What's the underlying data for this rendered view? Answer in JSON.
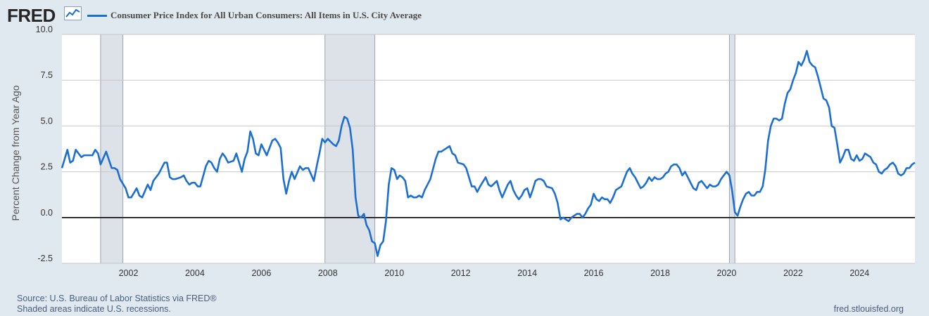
{
  "header": {
    "logo_text": "FRED",
    "logo_icon": "line-chart-icon",
    "series_title": "Consumer Price Index for All Urban Consumers: All Items in U.S. City Average"
  },
  "footer": {
    "source": "Source: U.S. Bureau of Labor Statistics via FRED®",
    "recessions_note": "Shaded areas indicate U.S. recessions.",
    "site": "fred.stlouisfed.org"
  },
  "colors": {
    "series": "#1c6fd1",
    "background": "#e1e9f0",
    "plot_bg": "#ffffff",
    "recession": "#dde1e8",
    "zero_line": "#000000"
  },
  "chart_data": {
    "type": "line",
    "title": "Consumer Price Index for All Urban Consumers: All Items in U.S. City Average",
    "xlabel": "",
    "ylabel": "Percent Change from Year Ago",
    "xlim": [
      "2000-01-01",
      "2025-09-01"
    ],
    "ylim": [
      -2.5,
      10.0
    ],
    "yticks": [
      -2.5,
      0.0,
      2.5,
      5.0,
      7.5,
      10.0
    ],
    "ytick_labels": [
      "-2.5",
      "0.0",
      "2.5",
      "5.0",
      "7.5",
      "10.0"
    ],
    "xticks": [
      "2002",
      "2004",
      "2006",
      "2008",
      "2010",
      "2012",
      "2014",
      "2016",
      "2018",
      "2020",
      "2022",
      "2024"
    ],
    "grid": true,
    "recessions": [
      {
        "start": "2001-03-01",
        "end": "2001-11-01"
      },
      {
        "start": "2007-12-01",
        "end": "2009-06-01"
      },
      {
        "start": "2020-02-01",
        "end": "2020-04-01"
      }
    ],
    "series": [
      {
        "name": "Consumer Price Index for All Urban Consumers: All Items in U.S. City Average",
        "points": [
          [
            "2000-01",
            2.7
          ],
          [
            "2000-03",
            3.7
          ],
          [
            "2000-04",
            3.0
          ],
          [
            "2000-05",
            3.1
          ],
          [
            "2000-06",
            3.7
          ],
          [
            "2000-08",
            3.3
          ],
          [
            "2000-09",
            3.4
          ],
          [
            "2000-12",
            3.4
          ],
          [
            "2001-01",
            3.7
          ],
          [
            "2001-02",
            3.5
          ],
          [
            "2001-03",
            2.9
          ],
          [
            "2001-05",
            3.6
          ],
          [
            "2001-07",
            2.7
          ],
          [
            "2001-08",
            2.7
          ],
          [
            "2001-09",
            2.6
          ],
          [
            "2001-10",
            2.1
          ],
          [
            "2001-12",
            1.6
          ],
          [
            "2002-01",
            1.1
          ],
          [
            "2002-02",
            1.1
          ],
          [
            "2002-04",
            1.6
          ],
          [
            "2002-05",
            1.2
          ],
          [
            "2002-06",
            1.1
          ],
          [
            "2002-08",
            1.8
          ],
          [
            "2002-09",
            1.5
          ],
          [
            "2002-10",
            2.0
          ],
          [
            "2002-12",
            2.4
          ],
          [
            "2003-02",
            3.0
          ],
          [
            "2003-03",
            3.0
          ],
          [
            "2003-04",
            2.2
          ],
          [
            "2003-05",
            2.1
          ],
          [
            "2003-06",
            2.1
          ],
          [
            "2003-08",
            2.2
          ],
          [
            "2003-09",
            2.3
          ],
          [
            "2003-10",
            2.0
          ],
          [
            "2003-11",
            1.8
          ],
          [
            "2003-12",
            1.9
          ],
          [
            "2004-01",
            1.9
          ],
          [
            "2004-02",
            1.7
          ],
          [
            "2004-03",
            1.7
          ],
          [
            "2004-05",
            2.8
          ],
          [
            "2004-06",
            3.1
          ],
          [
            "2004-07",
            3.0
          ],
          [
            "2004-08",
            2.7
          ],
          [
            "2004-09",
            2.5
          ],
          [
            "2004-10",
            3.2
          ],
          [
            "2004-11",
            3.5
          ],
          [
            "2004-12",
            3.3
          ],
          [
            "2005-01",
            3.0
          ],
          [
            "2005-03",
            3.1
          ],
          [
            "2005-04",
            3.5
          ],
          [
            "2005-06",
            2.5
          ],
          [
            "2005-07",
            3.2
          ],
          [
            "2005-08",
            3.6
          ],
          [
            "2005-09",
            4.7
          ],
          [
            "2005-10",
            4.3
          ],
          [
            "2005-11",
            3.5
          ],
          [
            "2005-12",
            3.4
          ],
          [
            "2006-01",
            4.0
          ],
          [
            "2006-03",
            3.4
          ],
          [
            "2006-05",
            4.2
          ],
          [
            "2006-06",
            4.3
          ],
          [
            "2006-07",
            4.1
          ],
          [
            "2006-08",
            3.8
          ],
          [
            "2006-09",
            2.1
          ],
          [
            "2006-10",
            1.3
          ],
          [
            "2006-11",
            2.0
          ],
          [
            "2006-12",
            2.5
          ],
          [
            "2007-01",
            2.1
          ],
          [
            "2007-03",
            2.8
          ],
          [
            "2007-04",
            2.6
          ],
          [
            "2007-05",
            2.7
          ],
          [
            "2007-06",
            2.7
          ],
          [
            "2007-08",
            2.0
          ],
          [
            "2007-09",
            2.8
          ],
          [
            "2007-10",
            3.5
          ],
          [
            "2007-11",
            4.3
          ],
          [
            "2007-12",
            4.1
          ],
          [
            "2008-01",
            4.3
          ],
          [
            "2008-03",
            4.0
          ],
          [
            "2008-04",
            3.9
          ],
          [
            "2008-05",
            4.2
          ],
          [
            "2008-06",
            5.0
          ],
          [
            "2008-07",
            5.5
          ],
          [
            "2008-08",
            5.4
          ],
          [
            "2008-09",
            4.9
          ],
          [
            "2008-10",
            3.7
          ],
          [
            "2008-11",
            1.1
          ],
          [
            "2008-12",
            0.1
          ],
          [
            "2009-01",
            0.0
          ],
          [
            "2009-02",
            0.2
          ],
          [
            "2009-03",
            -0.4
          ],
          [
            "2009-04",
            -0.7
          ],
          [
            "2009-05",
            -1.3
          ],
          [
            "2009-06",
            -1.4
          ],
          [
            "2009-07",
            -2.1
          ],
          [
            "2009-08",
            -1.5
          ],
          [
            "2009-09",
            -1.3
          ],
          [
            "2009-10",
            -0.2
          ],
          [
            "2009-11",
            1.8
          ],
          [
            "2009-12",
            2.7
          ],
          [
            "2010-01",
            2.6
          ],
          [
            "2010-02",
            2.1
          ],
          [
            "2010-03",
            2.3
          ],
          [
            "2010-04",
            2.2
          ],
          [
            "2010-05",
            2.0
          ],
          [
            "2010-06",
            1.1
          ],
          [
            "2010-07",
            1.2
          ],
          [
            "2010-08",
            1.1
          ],
          [
            "2010-09",
            1.1
          ],
          [
            "2010-10",
            1.2
          ],
          [
            "2010-11",
            1.1
          ],
          [
            "2010-12",
            1.5
          ],
          [
            "2011-02",
            2.1
          ],
          [
            "2011-04",
            3.2
          ],
          [
            "2011-05",
            3.6
          ],
          [
            "2011-06",
            3.6
          ],
          [
            "2011-08",
            3.8
          ],
          [
            "2011-09",
            3.9
          ],
          [
            "2011-10",
            3.5
          ],
          [
            "2011-11",
            3.4
          ],
          [
            "2011-12",
            3.0
          ],
          [
            "2012-02",
            2.9
          ],
          [
            "2012-03",
            2.7
          ],
          [
            "2012-05",
            1.7
          ],
          [
            "2012-06",
            1.7
          ],
          [
            "2012-07",
            1.4
          ],
          [
            "2012-08",
            1.7
          ],
          [
            "2012-10",
            2.2
          ],
          [
            "2012-11",
            1.8
          ],
          [
            "2012-12",
            1.7
          ],
          [
            "2013-02",
            2.0
          ],
          [
            "2013-03",
            1.5
          ],
          [
            "2013-04",
            1.1
          ],
          [
            "2013-06",
            1.8
          ],
          [
            "2013-07",
            2.0
          ],
          [
            "2013-08",
            1.5
          ],
          [
            "2013-09",
            1.2
          ],
          [
            "2013-10",
            1.0
          ],
          [
            "2013-11",
            1.2
          ],
          [
            "2013-12",
            1.5
          ],
          [
            "2014-01",
            1.6
          ],
          [
            "2014-02",
            1.1
          ],
          [
            "2014-03",
            1.5
          ],
          [
            "2014-04",
            2.0
          ],
          [
            "2014-05",
            2.1
          ],
          [
            "2014-06",
            2.1
          ],
          [
            "2014-07",
            2.0
          ],
          [
            "2014-08",
            1.7
          ],
          [
            "2014-10",
            1.6
          ],
          [
            "2014-11",
            1.3
          ],
          [
            "2014-12",
            0.8
          ],
          [
            "2015-01",
            -0.1
          ],
          [
            "2015-02",
            0.0
          ],
          [
            "2015-03",
            -0.1
          ],
          [
            "2015-04",
            -0.2
          ],
          [
            "2015-05",
            0.0
          ],
          [
            "2015-06",
            0.1
          ],
          [
            "2015-07",
            0.2
          ],
          [
            "2015-08",
            0.2
          ],
          [
            "2015-09",
            0.0
          ],
          [
            "2015-10",
            0.2
          ],
          [
            "2015-11",
            0.5
          ],
          [
            "2015-12",
            0.7
          ],
          [
            "2016-01",
            1.3
          ],
          [
            "2016-02",
            1.0
          ],
          [
            "2016-03",
            0.9
          ],
          [
            "2016-04",
            1.1
          ],
          [
            "2016-05",
            1.0
          ],
          [
            "2016-06",
            1.0
          ],
          [
            "2016-07",
            0.8
          ],
          [
            "2016-08",
            1.1
          ],
          [
            "2016-09",
            1.5
          ],
          [
            "2016-10",
            1.6
          ],
          [
            "2016-11",
            1.7
          ],
          [
            "2016-12",
            2.1
          ],
          [
            "2017-01",
            2.5
          ],
          [
            "2017-02",
            2.7
          ],
          [
            "2017-03",
            2.4
          ],
          [
            "2017-04",
            2.2
          ],
          [
            "2017-05",
            1.9
          ],
          [
            "2017-06",
            1.6
          ],
          [
            "2017-07",
            1.7
          ],
          [
            "2017-08",
            1.9
          ],
          [
            "2017-09",
            2.2
          ],
          [
            "2017-10",
            2.0
          ],
          [
            "2017-11",
            2.2
          ],
          [
            "2017-12",
            2.1
          ],
          [
            "2018-01",
            2.1
          ],
          [
            "2018-02",
            2.2
          ],
          [
            "2018-03",
            2.4
          ],
          [
            "2018-04",
            2.5
          ],
          [
            "2018-05",
            2.8
          ],
          [
            "2018-06",
            2.9
          ],
          [
            "2018-07",
            2.9
          ],
          [
            "2018-08",
            2.7
          ],
          [
            "2018-09",
            2.3
          ],
          [
            "2018-10",
            2.5
          ],
          [
            "2018-11",
            2.2
          ],
          [
            "2018-12",
            1.9
          ],
          [
            "2019-01",
            1.6
          ],
          [
            "2019-02",
            1.5
          ],
          [
            "2019-03",
            1.9
          ],
          [
            "2019-04",
            2.0
          ],
          [
            "2019-05",
            1.8
          ],
          [
            "2019-06",
            1.6
          ],
          [
            "2019-07",
            1.8
          ],
          [
            "2019-08",
            1.7
          ],
          [
            "2019-09",
            1.7
          ],
          [
            "2019-10",
            1.8
          ],
          [
            "2019-11",
            2.1
          ],
          [
            "2019-12",
            2.3
          ],
          [
            "2020-01",
            2.5
          ],
          [
            "2020-02",
            2.3
          ],
          [
            "2020-03",
            1.5
          ],
          [
            "2020-04",
            0.3
          ],
          [
            "2020-05",
            0.1
          ],
          [
            "2020-06",
            0.6
          ],
          [
            "2020-07",
            1.0
          ],
          [
            "2020-08",
            1.3
          ],
          [
            "2020-09",
            1.4
          ],
          [
            "2020-10",
            1.2
          ],
          [
            "2020-11",
            1.2
          ],
          [
            "2020-12",
            1.4
          ],
          [
            "2021-01",
            1.4
          ],
          [
            "2021-02",
            1.7
          ],
          [
            "2021-03",
            2.6
          ],
          [
            "2021-04",
            4.2
          ],
          [
            "2021-05",
            5.0
          ],
          [
            "2021-06",
            5.4
          ],
          [
            "2021-07",
            5.4
          ],
          [
            "2021-08",
            5.3
          ],
          [
            "2021-09",
            5.4
          ],
          [
            "2021-10",
            6.2
          ],
          [
            "2021-11",
            6.8
          ],
          [
            "2021-12",
            7.0
          ],
          [
            "2022-01",
            7.5
          ],
          [
            "2022-02",
            7.9
          ],
          [
            "2022-03",
            8.5
          ],
          [
            "2022-04",
            8.3
          ],
          [
            "2022-05",
            8.6
          ],
          [
            "2022-06",
            9.1
          ],
          [
            "2022-07",
            8.5
          ],
          [
            "2022-08",
            8.3
          ],
          [
            "2022-09",
            8.2
          ],
          [
            "2022-10",
            7.7
          ],
          [
            "2022-11",
            7.1
          ],
          [
            "2022-12",
            6.5
          ],
          [
            "2023-01",
            6.4
          ],
          [
            "2023-02",
            6.0
          ],
          [
            "2023-03",
            5.0
          ],
          [
            "2023-04",
            4.9
          ],
          [
            "2023-05",
            4.0
          ],
          [
            "2023-06",
            3.0
          ],
          [
            "2023-07",
            3.3
          ],
          [
            "2023-08",
            3.7
          ],
          [
            "2023-09",
            3.7
          ],
          [
            "2023-10",
            3.2
          ],
          [
            "2023-11",
            3.1
          ],
          [
            "2023-12",
            3.4
          ],
          [
            "2024-01",
            3.1
          ],
          [
            "2024-02",
            3.2
          ],
          [
            "2024-03",
            3.5
          ],
          [
            "2024-04",
            3.4
          ],
          [
            "2024-05",
            3.3
          ],
          [
            "2024-06",
            3.0
          ],
          [
            "2024-07",
            2.9
          ],
          [
            "2024-08",
            2.5
          ],
          [
            "2024-09",
            2.4
          ],
          [
            "2024-10",
            2.6
          ],
          [
            "2024-11",
            2.7
          ],
          [
            "2024-12",
            2.9
          ],
          [
            "2025-01",
            3.0
          ],
          [
            "2025-02",
            2.8
          ],
          [
            "2025-03",
            2.4
          ],
          [
            "2025-04",
            2.3
          ],
          [
            "2025-05",
            2.4
          ],
          [
            "2025-06",
            2.7
          ],
          [
            "2025-07",
            2.7
          ],
          [
            "2025-08",
            2.9
          ],
          [
            "2025-09",
            3.0
          ]
        ]
      }
    ]
  }
}
